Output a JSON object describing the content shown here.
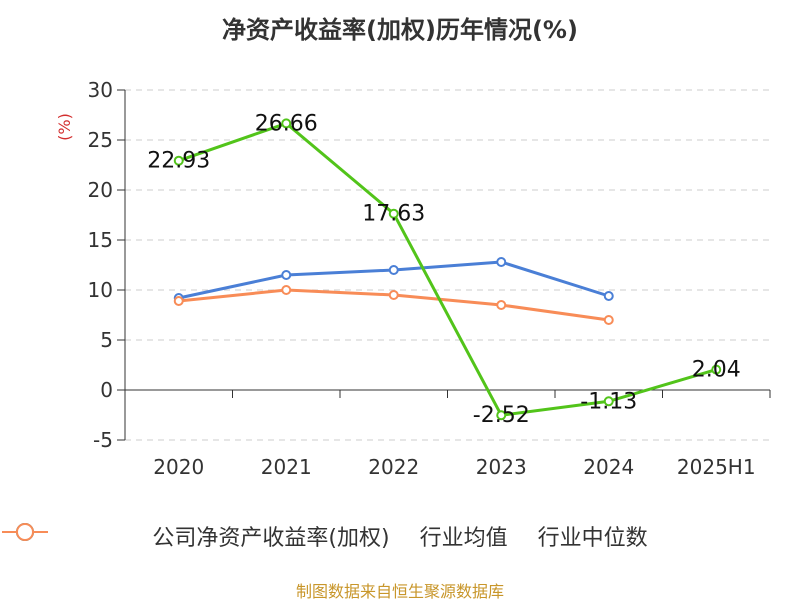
{
  "chart_data": {
    "type": "line",
    "title": "净资产收益率(加权)历年情况(%)",
    "ylabel": "(%)",
    "categories": [
      "2020",
      "2021",
      "2022",
      "2023",
      "2024",
      "2025H1"
    ],
    "ylim": [
      -5,
      30
    ],
    "yticks": [
      -5,
      0,
      5,
      10,
      15,
      20,
      25,
      30
    ],
    "grid": true,
    "legend_position": "bottom",
    "series": [
      {
        "name": "公司净资产收益率(加权)",
        "color": "#52c41a",
        "values": [
          22.93,
          26.66,
          17.63,
          -2.52,
          -1.13,
          2.04
        ],
        "labels": [
          "22.93",
          "26.66",
          "17.63",
          "-2.52",
          "-1.13",
          "2.04"
        ]
      },
      {
        "name": "行业均值",
        "color": "#4a7fd6",
        "values": [
          9.2,
          11.5,
          12.0,
          12.8,
          9.4,
          null
        ]
      },
      {
        "name": "行业中位数",
        "color": "#f88c57",
        "values": [
          8.9,
          10.0,
          9.5,
          8.5,
          7.0,
          null
        ]
      }
    ]
  },
  "source": "制图数据来自恒生聚源数据库"
}
